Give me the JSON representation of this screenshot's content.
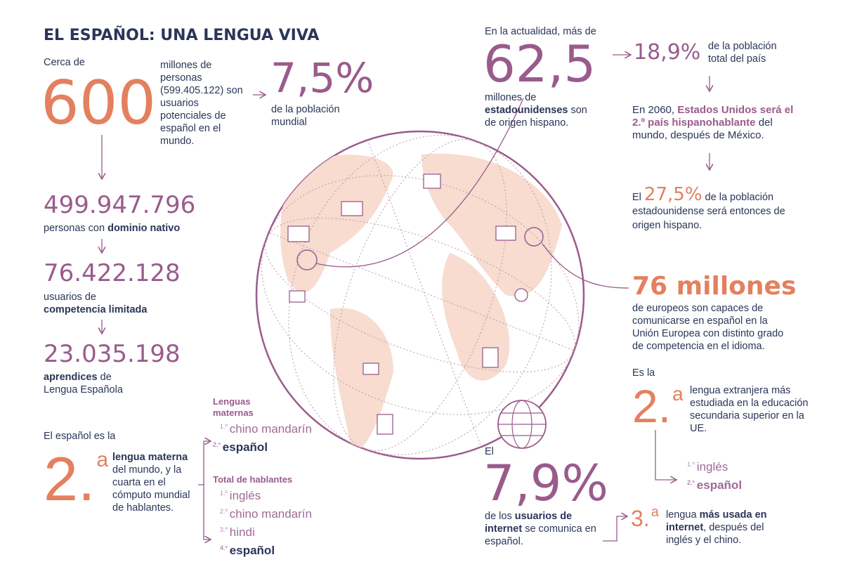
{
  "title": "EL ESPAÑOL: UNA LENGUA VIVA",
  "colors": {
    "navy": "#2b3558",
    "orange": "#e4805f",
    "purple": "#9a5b8c",
    "globe": "#f7dccf"
  },
  "left": {
    "cerca": "Cerca de",
    "n600": "600",
    "desc600": "millones de personas (599.405.122) son usuarios potenciales de español en el mundo.",
    "pct": "7,5%",
    "pct_desc": "de la población mundial",
    "s1_num": "499.947.796",
    "s1_a": "personas con ",
    "s1_b": "dominio nativo",
    "s2_num": "76.422.128",
    "s2_a": "usuarios de",
    "s2_b": "competencia limitada",
    "s3_num": "23.035.198",
    "s3_a": "aprendices",
    "s3_b": " de",
    "s3_c": "Lengua Española",
    "es_la": "El español es la",
    "rank": "2.",
    "sup": "a",
    "rank_b": "lengua materna",
    "rank_desc": "del mundo, y la cuarta en el cómputo mundial de hablantes."
  },
  "lists": {
    "materna_title": "Lenguas maternas",
    "materna": [
      {
        "n": "1.º",
        "l": "chino mandarín"
      },
      {
        "n": "2.º",
        "l": "español"
      }
    ],
    "total_title": "Total de hablantes",
    "total": [
      {
        "n": "1.º",
        "l": "inglés"
      },
      {
        "n": "2.º",
        "l": "chino mandarín"
      },
      {
        "n": "3.º",
        "l": "hindi"
      },
      {
        "n": "4.º",
        "l": "español"
      }
    ]
  },
  "usa": {
    "intro": "En la actualidad, más de",
    "num": "62,5",
    "d1": "millones de",
    "d2": "estadounidenses",
    "d3": " son",
    "d4": "de origen hispano.",
    "pct": "18,9%",
    "pct_desc": "de la población total del país",
    "y2060a": "En 2060, ",
    "y2060b": "Estados Unidos será el 2.º país hispanohablante",
    "y2060c": " del mundo, después de México.",
    "el": "El ",
    "pct2": "27,5%",
    "pct2_desc": " de la población estadounidense será entonces de origen hispano."
  },
  "eu": {
    "num": "76 millones",
    "desc": "de europeos son capaces de comunicarse en español en la Unión Europea con distinto grado de competencia en el idioma.",
    "es_la": "Es la",
    "rank": "2.",
    "sup": "a",
    "rank_desc": "lengua extranjera más estudiada en la educación secundaria superior en la UE.",
    "list": [
      {
        "n": "1.º",
        "l": "inglés"
      },
      {
        "n": "2.º",
        "l": "español"
      }
    ]
  },
  "internet": {
    "el": "El",
    "pct": "7,9%",
    "d1": "de los ",
    "d2": "usuarios de internet",
    "d3": " se comunica en español.",
    "rank": "3.",
    "sup": "a",
    "r1": "lengua ",
    "r2": "más usada en internet",
    "r3": ", después del inglés y el chino."
  }
}
